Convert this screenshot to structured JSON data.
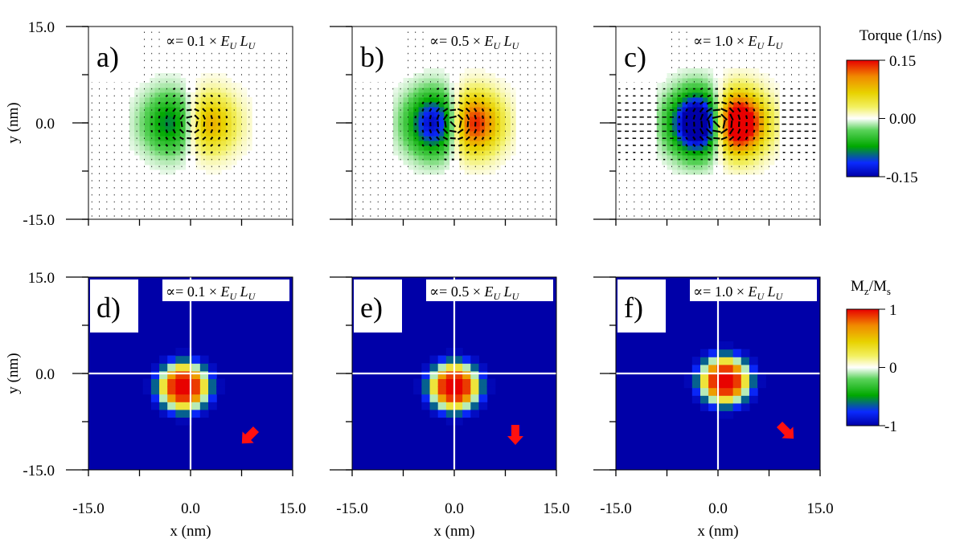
{
  "figure": {
    "row1_colorbar": {
      "title": "Torque (1/ns)",
      "ticks": [
        "0.15",
        "0.00",
        "-0.15"
      ],
      "range": [
        -0.15,
        0.15
      ]
    },
    "row2_colorbar": {
      "title_main": "M",
      "title_sub1": "z",
      "title_slash": "/M",
      "title_sub2": "s",
      "ticks": [
        "1",
        "0",
        "-1"
      ],
      "range": [
        -1,
        1
      ]
    },
    "colormap": [
      "#0000a8",
      "#0a2aff",
      "#00a800",
      "#5ad25a",
      "#ffffff",
      "#f2f060",
      "#e8d200",
      "#f08a00",
      "#e80000"
    ]
  },
  "chart_data": [
    {
      "type": "heatmap",
      "panel_label": "a)",
      "alpha_prefix": "∝= 0.1 ×",
      "ylabel": "y (nm)",
      "xlabel": "",
      "xlim": [
        -15,
        15
      ],
      "ylim": [
        -15,
        15
      ],
      "yticks": [
        "15.0",
        "0.0",
        "-15.0"
      ],
      "xticks": [],
      "quantity": "torque",
      "vector_field": true,
      "torque_peak": 0.06,
      "grid": false
    },
    {
      "type": "heatmap",
      "panel_label": "b)",
      "alpha_prefix": "∝= 0.5  ×",
      "ylabel": "",
      "xlabel": "",
      "xlim": [
        -15,
        15
      ],
      "ylim": [
        -15,
        15
      ],
      "yticks": [],
      "xticks": [],
      "quantity": "torque",
      "vector_field": true,
      "torque_peak": 0.1,
      "grid": false
    },
    {
      "type": "heatmap",
      "panel_label": "c)",
      "alpha_prefix": "∝= 1.0  ×",
      "ylabel": "",
      "xlabel": "",
      "xlim": [
        -15,
        15
      ],
      "ylim": [
        -15,
        15
      ],
      "yticks": [],
      "xticks": [],
      "quantity": "torque",
      "vector_field": true,
      "torque_peak": 0.15,
      "grid": false
    },
    {
      "type": "heatmap",
      "panel_label": "d)",
      "alpha_prefix": "∝= 0.1 ×",
      "ylabel": "y (nm)",
      "xlabel": "x (nm)",
      "xlim": [
        -15,
        15
      ],
      "ylim": [
        -15,
        15
      ],
      "yticks": [
        "15.0",
        "0.0",
        "-15.0"
      ],
      "xticks": [
        "-15.0",
        "0.0",
        "15.0"
      ],
      "quantity": "Mz/Ms",
      "skyrmion_center": [
        -1,
        -2
      ],
      "motion_arrow_direction": "down-left",
      "grid": false
    },
    {
      "type": "heatmap",
      "panel_label": "e)",
      "alpha_prefix": "∝= 0.5 ×",
      "ylabel": "",
      "xlabel": "x (nm)",
      "xlim": [
        -15,
        15
      ],
      "ylim": [
        -15,
        15
      ],
      "yticks": [],
      "xticks": [
        "-15.0",
        "0.0",
        "15.0"
      ],
      "quantity": "Mz/Ms",
      "skyrmion_center": [
        0,
        -2
      ],
      "motion_arrow_direction": "down",
      "grid": false
    },
    {
      "type": "heatmap",
      "panel_label": "f)",
      "alpha_prefix": "∝= 1.0 ×",
      "ylabel": "",
      "xlabel": "x (nm)",
      "xlim": [
        -15,
        15
      ],
      "ylim": [
        -15,
        15
      ],
      "yticks": [],
      "xticks": [
        "-15.0",
        "0.0",
        "15.0"
      ],
      "quantity": "Mz/Ms",
      "skyrmion_center": [
        1,
        -1
      ],
      "motion_arrow_direction": "down-right",
      "grid": false
    }
  ]
}
